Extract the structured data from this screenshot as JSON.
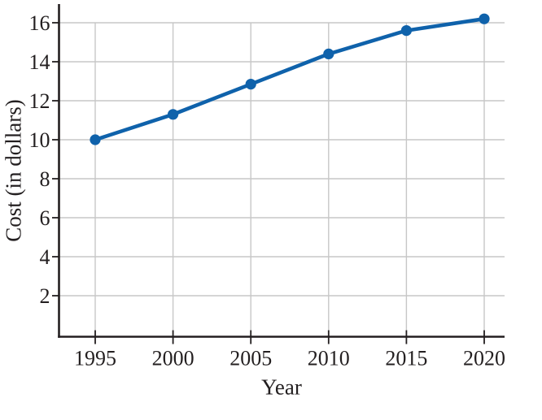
{
  "chart_data": {
    "type": "line",
    "title": "",
    "xlabel": "Year",
    "ylabel": "Cost (in dollars)",
    "x": [
      1995,
      2000,
      2005,
      2010,
      2015,
      2020
    ],
    "series": [
      {
        "name": "Cost",
        "values": [
          10.0,
          11.3,
          12.85,
          14.4,
          15.6,
          16.2
        ]
      }
    ],
    "xticks": [
      1995,
      2000,
      2005,
      2010,
      2015,
      2020
    ],
    "yticks": [
      2,
      4,
      6,
      8,
      10,
      12,
      14,
      16
    ],
    "xlim": [
      1992.7,
      2021.3
    ],
    "ylim": [
      0,
      17
    ],
    "grid": true,
    "legend": false,
    "marker": "circle",
    "colors": {
      "line": "#0f62ab",
      "marker": "#0f62ab",
      "grid": "#c7c7c7",
      "axis": "#231f20",
      "text": "#231f20"
    }
  }
}
